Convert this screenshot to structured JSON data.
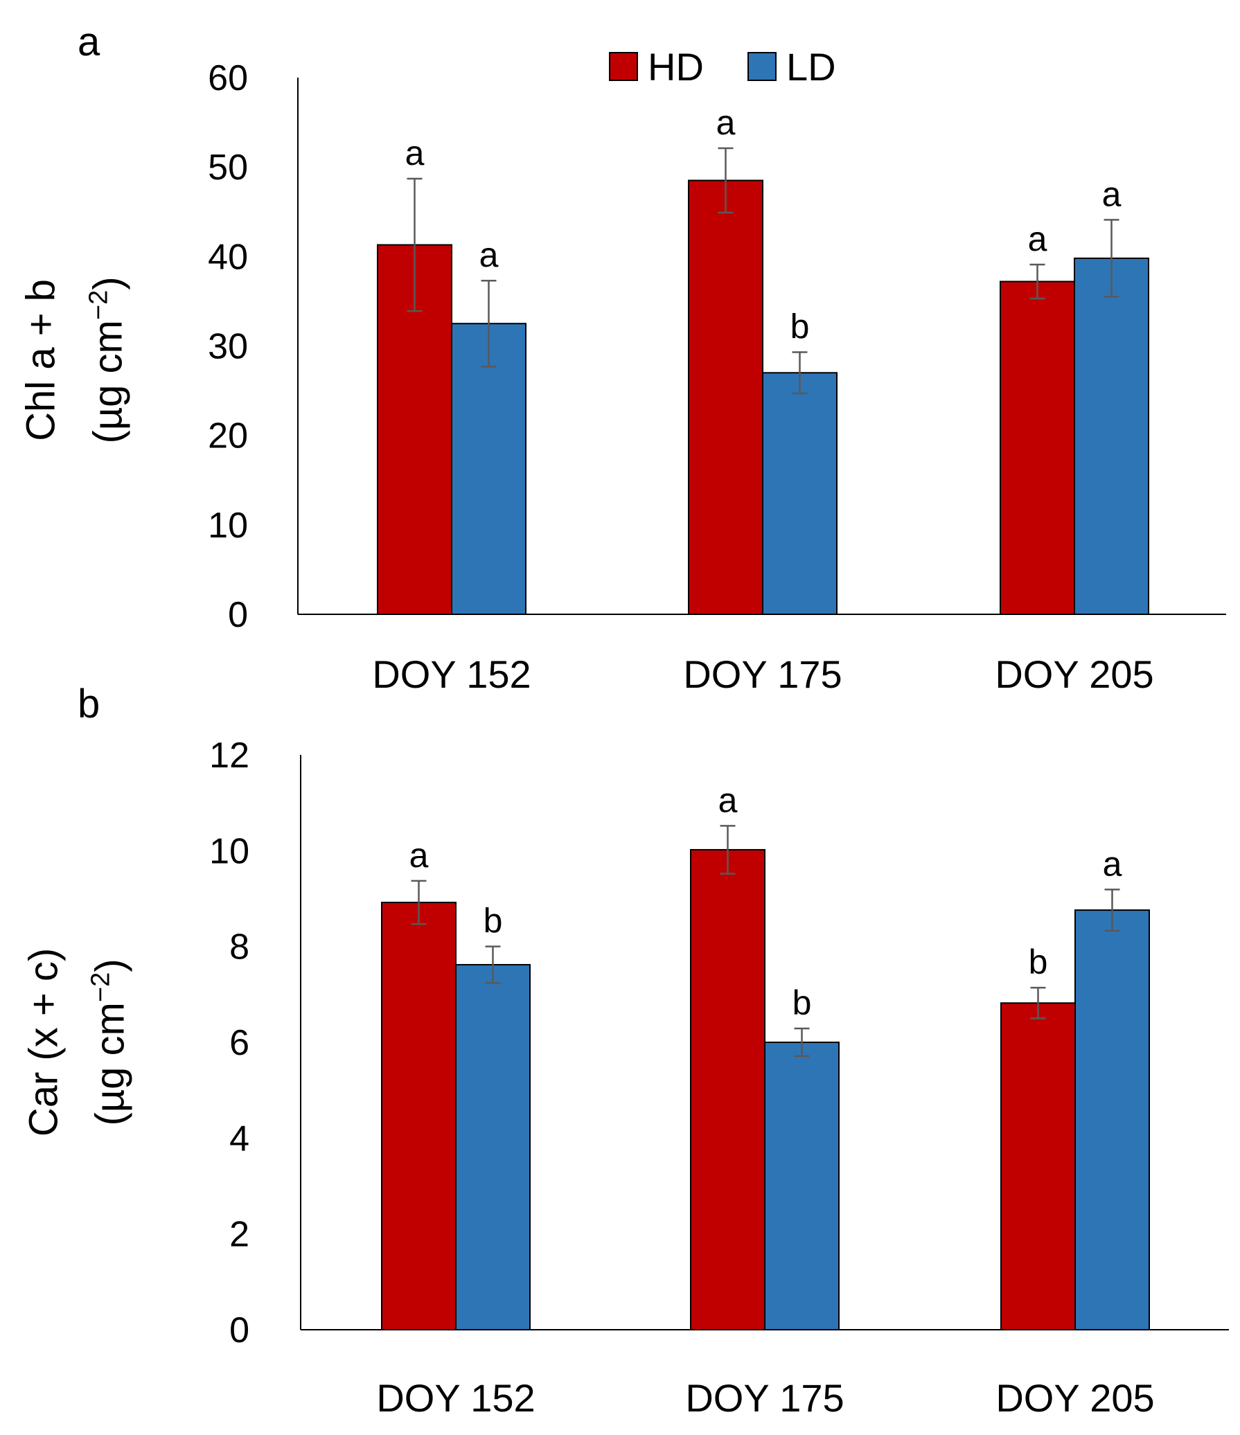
{
  "chart_data": [
    {
      "panel_label": "a",
      "type": "bar",
      "title": "",
      "xlabel": "",
      "ylabel_line1": "Chl a + b",
      "ylabel_line2_prefix": "(µg cm",
      "ylabel_sup": "−2",
      "ylabel_line2_suffix": ")",
      "ylim": [
        0,
        60
      ],
      "yticks": [
        0,
        10,
        20,
        30,
        40,
        50,
        60
      ],
      "grid": false,
      "legend": "top-center",
      "categories": [
        "DOY 152",
        "DOY 175",
        "DOY 205"
      ],
      "series": [
        {
          "name": "HD",
          "color": "#c00000",
          "values": [
            41.3,
            48.5,
            37.2
          ],
          "errors": [
            7.4,
            3.6,
            1.9
          ],
          "letters": [
            "a",
            "a",
            "a"
          ]
        },
        {
          "name": "LD",
          "color": "#2e75b6",
          "values": [
            32.5,
            27.0,
            39.8
          ],
          "errors": [
            4.8,
            2.3,
            4.3
          ],
          "letters": [
            "a",
            "b",
            "a"
          ]
        }
      ]
    },
    {
      "panel_label": "b",
      "type": "bar",
      "title": "",
      "xlabel": "",
      "ylabel_line1": "Car (x + c)",
      "ylabel_line2_prefix": "(µg cm",
      "ylabel_sup": "−2",
      "ylabel_line2_suffix": ")",
      "ylim": [
        0,
        12
      ],
      "yticks": [
        0,
        2,
        4,
        6,
        8,
        10,
        12
      ],
      "grid": false,
      "legend": "",
      "categories": [
        "DOY 152",
        "DOY 175",
        "DOY 205"
      ],
      "series": [
        {
          "name": "HD",
          "color": "#c00000",
          "values": [
            8.92,
            10.02,
            6.82
          ],
          "errors": [
            0.45,
            0.5,
            0.32
          ],
          "letters": [
            "a",
            "a",
            "b"
          ]
        },
        {
          "name": "LD",
          "color": "#2e75b6",
          "values": [
            7.62,
            6.0,
            8.76
          ],
          "errors": [
            0.38,
            0.29,
            0.43
          ],
          "letters": [
            "b",
            "b",
            "a"
          ]
        }
      ]
    }
  ]
}
